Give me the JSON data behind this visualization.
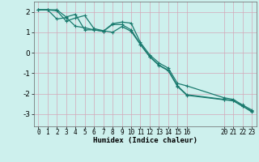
{
  "bg_color": "#cdf0ed",
  "grid_color": "#d4a8b8",
  "line_color": "#1a7a6e",
  "xlabel": "Humidex (Indice chaleur)",
  "xlim": [
    -0.5,
    23.5
  ],
  "ylim": [
    -3.6,
    2.5
  ],
  "yticks": [
    -3,
    -2,
    -1,
    0,
    1,
    2
  ],
  "xticks": [
    0,
    1,
    2,
    3,
    4,
    5,
    6,
    7,
    8,
    9,
    10,
    11,
    12,
    13,
    14,
    15,
    16,
    20,
    21,
    22,
    23
  ],
  "line1_x": [
    0,
    1,
    2,
    3,
    4,
    5,
    6,
    7,
    8,
    9,
    10,
    11,
    12,
    13,
    14,
    15,
    16,
    20,
    21,
    22,
    23
  ],
  "line1_y": [
    2.1,
    2.1,
    2.1,
    1.75,
    1.88,
    1.12,
    1.12,
    1.05,
    1.38,
    1.38,
    1.12,
    0.42,
    -0.18,
    -0.6,
    -0.85,
    -1.62,
    -2.05,
    -2.28,
    -2.33,
    -2.6,
    -2.9
  ],
  "line2_x": [
    0,
    1,
    2,
    3,
    4,
    5,
    6,
    7,
    8,
    9,
    10,
    11,
    12,
    13,
    14,
    15,
    16,
    20,
    21,
    22,
    23
  ],
  "line2_y": [
    2.1,
    2.1,
    1.65,
    1.72,
    1.3,
    1.22,
    1.12,
    1.05,
    1.42,
    1.5,
    1.45,
    0.5,
    -0.1,
    -0.5,
    -0.75,
    -1.5,
    -1.62,
    -2.2,
    -2.28,
    -2.55,
    -2.8
  ],
  "line3_x": [
    0,
    1,
    2,
    3,
    4,
    5,
    6,
    7,
    8,
    9,
    10,
    11,
    12,
    13,
    14,
    15,
    16,
    20,
    21,
    22,
    23
  ],
  "line3_y": [
    2.1,
    2.1,
    2.05,
    1.55,
    1.7,
    1.82,
    1.18,
    1.08,
    1.0,
    1.28,
    1.05,
    0.4,
    -0.2,
    -0.62,
    -0.88,
    -1.65,
    -2.08,
    -2.3,
    -2.35,
    -2.62,
    -2.85
  ],
  "marker_size": 3,
  "linewidth": 0.9
}
